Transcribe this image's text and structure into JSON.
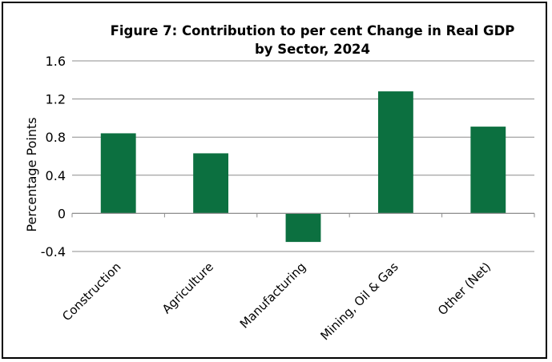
{
  "chart_data": {
    "type": "bar",
    "title": "Figure 7: Contribution to per cent Change in Real GDP by Sector, 2024",
    "title_lines": [
      "Figure 7: Contribution to per cent Change in Real GDP",
      "by Sector, 2024"
    ],
    "xlabel": "",
    "ylabel": "Percentage Points",
    "categories": [
      "Construction",
      "Agriculture",
      "Manufacturing",
      "Mining, Oil & Gas",
      "Other (Net)"
    ],
    "values": [
      0.84,
      0.63,
      -0.3,
      1.28,
      0.91
    ],
    "ylim": [
      -0.4,
      1.6
    ],
    "yticks": [
      -0.4,
      0,
      0.4,
      0.8,
      1.2,
      1.6
    ],
    "ytick_labels": [
      "-0.4",
      "0",
      "0.4",
      "0.8",
      "1.2",
      "1.6"
    ],
    "bar_color": "#0c7040",
    "grid": true,
    "legend": "none"
  }
}
